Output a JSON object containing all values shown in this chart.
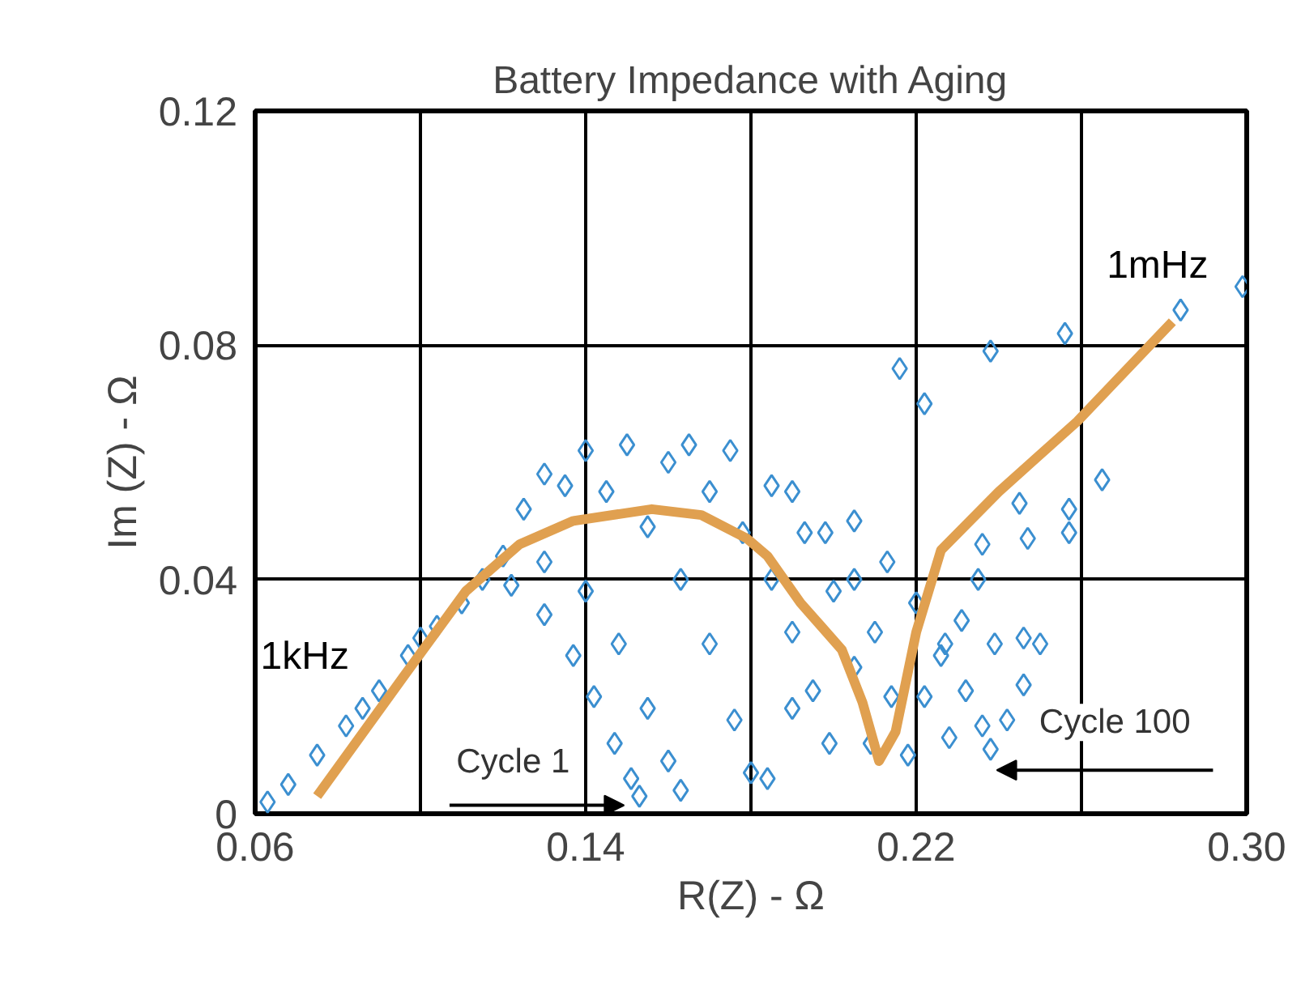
{
  "chart_data": {
    "type": "scatter",
    "title": "Battery Impedance with Aging",
    "xlabel": "R(Z) - Ω",
    "ylabel": "Im (Z) - Ω",
    "xlim": [
      0.06,
      0.3
    ],
    "ylim": [
      0,
      0.12
    ],
    "xticks": [
      0.06,
      {
        "value": 0.1,
        "label": null
      },
      0.14,
      {
        "value": 0.18,
        "label": null
      },
      0.22,
      {
        "value": 0.26,
        "label": null
      },
      {
        "value": 0.3,
        "label": "0.30"
      }
    ],
    "yticks": [
      0,
      0.04,
      0.08,
      0.12
    ],
    "grid": true,
    "series": [
      {
        "color": "#3b8fd0",
        "marker": "diamond",
        "x": [
          0.063,
          0.068,
          0.075,
          0.082,
          0.09,
          0.097,
          0.104,
          0.11,
          0.1,
          0.086,
          0.115,
          0.122,
          0.13,
          0.137,
          0.142,
          0.147,
          0.151,
          0.153,
          0.12,
          0.13,
          0.14,
          0.148,
          0.155,
          0.16,
          0.163,
          0.125,
          0.135,
          0.145,
          0.155,
          0.163,
          0.17,
          0.176,
          0.18,
          0.13,
          0.14,
          0.15,
          0.16,
          0.17,
          0.178,
          0.185,
          0.19,
          0.195,
          0.199,
          0.165,
          0.175,
          0.185,
          0.193,
          0.2,
          0.205,
          0.209,
          0.19,
          0.198,
          0.205,
          0.21,
          0.214,
          0.218,
          0.205,
          0.213,
          0.22,
          0.227,
          0.232,
          0.236,
          0.238,
          0.222,
          0.226,
          0.231,
          0.235,
          0.242,
          0.246,
          0.25,
          0.228,
          0.184,
          0.19,
          0.299,
          0.284,
          0.256,
          0.238,
          0.216,
          0.222,
          0.265,
          0.257,
          0.257,
          0.247,
          0.236,
          0.245,
          0.239,
          0.246
        ],
        "values": [
          0.002,
          0.005,
          0.01,
          0.015,
          0.021,
          0.027,
          0.032,
          0.036,
          0.03,
          0.018,
          0.04,
          0.039,
          0.034,
          0.027,
          0.02,
          0.012,
          0.006,
          0.003,
          0.044,
          0.043,
          0.038,
          0.029,
          0.018,
          0.009,
          0.004,
          0.052,
          0.056,
          0.055,
          0.049,
          0.04,
          0.029,
          0.016,
          0.007,
          0.058,
          0.062,
          0.063,
          0.06,
          0.055,
          0.048,
          0.04,
          0.031,
          0.021,
          0.012,
          0.063,
          0.062,
          0.056,
          0.048,
          0.038,
          0.025,
          0.012,
          0.055,
          0.048,
          0.04,
          0.031,
          0.02,
          0.01,
          0.05,
          0.043,
          0.036,
          0.029,
          0.021,
          0.015,
          0.011,
          0.02,
          0.027,
          0.033,
          0.04,
          0.016,
          0.022,
          0.029,
          0.013,
          0.006,
          0.018,
          0.09,
          0.086,
          0.082,
          0.079,
          0.076,
          0.07,
          0.057,
          0.052,
          0.048,
          0.047,
          0.046,
          0.053,
          0.029,
          0.03
        ]
      },
      {
        "type": "line",
        "color": "#e0a050",
        "marker": "none",
        "line_style": "solid",
        "x": [
          0.075,
          0.096,
          0.111,
          0.124,
          0.137,
          0.156,
          0.168,
          0.179,
          0.184,
          0.192,
          0.202,
          0.207,
          0.211,
          0.215,
          0.22,
          0.226,
          0.24,
          0.259,
          0.282
        ],
        "values": [
          0.003,
          0.0235,
          0.038,
          0.046,
          0.05,
          0.052,
          0.051,
          0.047,
          0.044,
          0.036,
          0.028,
          0.019,
          0.009,
          0.014,
          0.031,
          0.045,
          0.055,
          0.067,
          0.084
        ]
      }
    ],
    "annotations": [
      "1kHz",
      "1mHz",
      "Cycle 1",
      "Cycle 100"
    ]
  }
}
